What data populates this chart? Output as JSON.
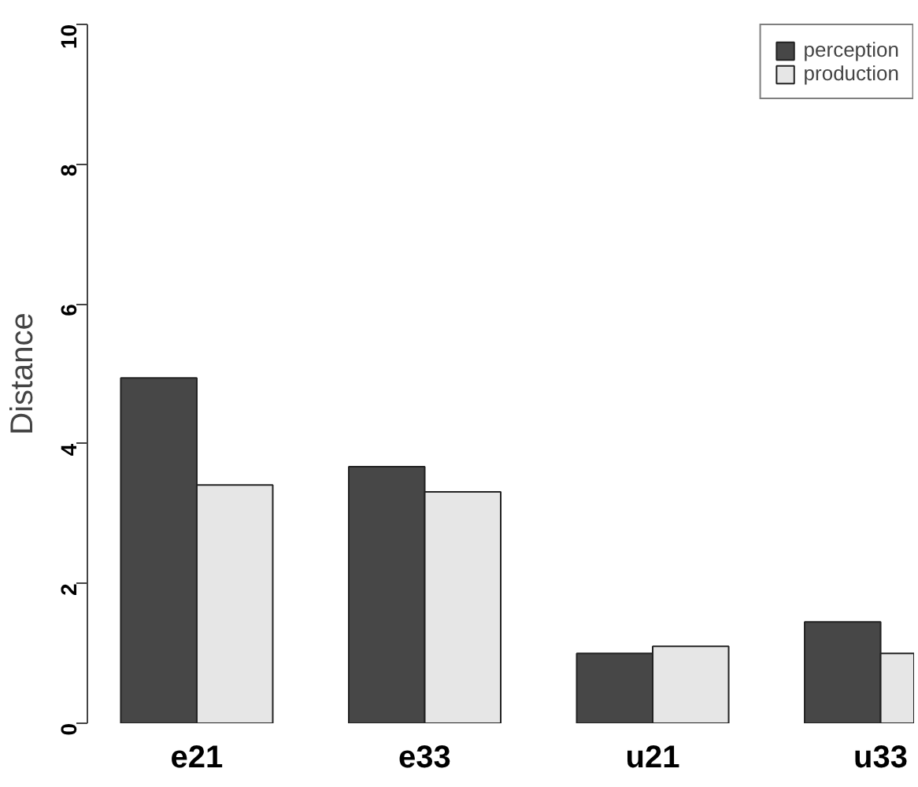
{
  "chart_data": {
    "type": "bar",
    "ylabel": "Distance",
    "categories": [
      "e21",
      "e33",
      "u21",
      "u33"
    ],
    "series": [
      {
        "name": "perception",
        "color": "#474747",
        "values": [
          4.94,
          3.67,
          1.0,
          1.45
        ]
      },
      {
        "name": "production",
        "color": "#e6e6e6",
        "values": [
          3.41,
          3.31,
          1.1,
          1.0
        ]
      }
    ],
    "ylim": [
      0,
      10
    ],
    "yticks": [
      0,
      2,
      4,
      6,
      8,
      10
    ],
    "grid": false,
    "legend": "top right"
  }
}
